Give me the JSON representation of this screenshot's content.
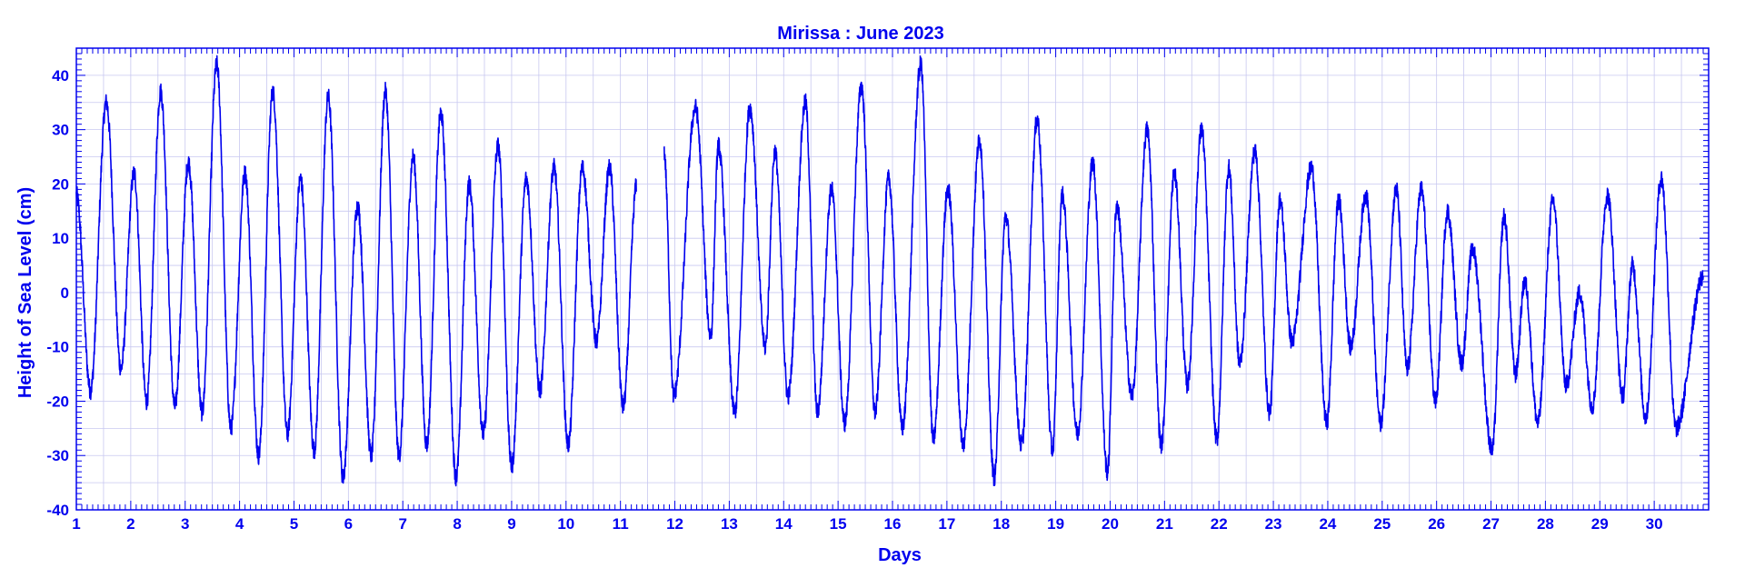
{
  "chart_data": {
    "type": "line",
    "title": "Mirissa : June 2023",
    "xlabel": "Days",
    "ylabel": "Height of Sea Level (cm)",
    "xlim": [
      1,
      31
    ],
    "ylim": [
      -40,
      45
    ],
    "x_ticks": [
      1,
      2,
      3,
      4,
      5,
      6,
      7,
      8,
      9,
      10,
      11,
      12,
      13,
      14,
      15,
      16,
      17,
      18,
      19,
      20,
      21,
      22,
      23,
      24,
      25,
      26,
      27,
      28,
      29,
      30
    ],
    "y_ticks": [
      -40,
      -30,
      -20,
      -10,
      0,
      10,
      20,
      30,
      40
    ],
    "grid": true,
    "colors": {
      "line": "#0000ee",
      "axis": "#0000ee",
      "grid": "#c8c8f0"
    },
    "gap": [
      11.3,
      11.8
    ],
    "series": [
      {
        "values": [
          [
            1.0,
            18
          ],
          [
            1.26,
            -18
          ],
          [
            1.55,
            35
          ],
          [
            1.82,
            -14
          ],
          [
            2.06,
            22
          ],
          [
            2.29,
            -20
          ],
          [
            2.55,
            37
          ],
          [
            2.81,
            -21
          ],
          [
            3.06,
            24
          ],
          [
            3.31,
            -22
          ],
          [
            3.58,
            42
          ],
          [
            3.84,
            -25
          ],
          [
            4.1,
            22
          ],
          [
            4.35,
            -30
          ],
          [
            4.61,
            37
          ],
          [
            4.88,
            -26
          ],
          [
            5.12,
            21
          ],
          [
            5.37,
            -29
          ],
          [
            5.63,
            36
          ],
          [
            5.9,
            -34
          ],
          [
            6.17,
            16
          ],
          [
            6.42,
            -30
          ],
          [
            6.68,
            37
          ],
          [
            6.93,
            -30
          ],
          [
            7.19,
            25
          ],
          [
            7.44,
            -28
          ],
          [
            7.7,
            33
          ],
          [
            7.98,
            -34
          ],
          [
            8.22,
            20
          ],
          [
            8.48,
            -26
          ],
          [
            8.75,
            27
          ],
          [
            9.0,
            -32
          ],
          [
            9.27,
            21
          ],
          [
            9.52,
            -18
          ],
          [
            9.78,
            23
          ],
          [
            10.04,
            -28
          ],
          [
            10.3,
            23
          ],
          [
            10.56,
            -9
          ],
          [
            10.8,
            23
          ],
          [
            11.05,
            -21
          ],
          [
            11.3,
            20
          ],
          [
            11.8,
            26
          ],
          [
            11.98,
            -19
          ],
          [
            12.38,
            34
          ],
          [
            12.66,
            -8
          ],
          [
            12.8,
            27
          ],
          [
            13.1,
            -22
          ],
          [
            13.38,
            34
          ],
          [
            13.66,
            -10
          ],
          [
            13.84,
            26
          ],
          [
            14.08,
            -19
          ],
          [
            14.4,
            35
          ],
          [
            14.62,
            -22
          ],
          [
            14.88,
            19
          ],
          [
            15.12,
            -24
          ],
          [
            15.43,
            38
          ],
          [
            15.68,
            -22
          ],
          [
            15.93,
            21
          ],
          [
            16.18,
            -25
          ],
          [
            16.52,
            42
          ],
          [
            16.75,
            -27
          ],
          [
            17.02,
            19
          ],
          [
            17.3,
            -28
          ],
          [
            17.6,
            28
          ],
          [
            17.87,
            -34
          ],
          [
            18.08,
            14
          ],
          [
            18.37,
            -28
          ],
          [
            18.66,
            32
          ],
          [
            18.94,
            -29
          ],
          [
            19.12,
            18
          ],
          [
            19.4,
            -26
          ],
          [
            19.68,
            24
          ],
          [
            19.95,
            -33
          ],
          [
            20.12,
            16
          ],
          [
            20.4,
            -19
          ],
          [
            20.68,
            30
          ],
          [
            20.94,
            -28
          ],
          [
            21.18,
            22
          ],
          [
            21.42,
            -17
          ],
          [
            21.68,
            30
          ],
          [
            21.96,
            -27
          ],
          [
            22.18,
            23
          ],
          [
            22.38,
            -13
          ],
          [
            22.66,
            26
          ],
          [
            22.93,
            -22
          ],
          [
            23.12,
            17
          ],
          [
            23.34,
            -9
          ],
          [
            23.7,
            23
          ],
          [
            23.98,
            -24
          ],
          [
            24.2,
            17
          ],
          [
            24.42,
            -10
          ],
          [
            24.7,
            18
          ],
          [
            24.97,
            -24
          ],
          [
            25.26,
            19
          ],
          [
            25.46,
            -14
          ],
          [
            25.72,
            19
          ],
          [
            25.98,
            -20
          ],
          [
            26.2,
            15
          ],
          [
            26.46,
            -13
          ],
          [
            26.66,
            8
          ],
          [
            27.02,
            -29
          ],
          [
            27.24,
            14
          ],
          [
            27.45,
            -15
          ],
          [
            27.62,
            2
          ],
          [
            27.86,
            -24
          ],
          [
            28.14,
            17
          ],
          [
            28.38,
            -17
          ],
          [
            28.63,
            0
          ],
          [
            28.86,
            -21
          ],
          [
            29.14,
            18
          ],
          [
            29.42,
            -19
          ],
          [
            29.6,
            5
          ],
          [
            29.84,
            -23
          ],
          [
            30.13,
            21
          ],
          [
            30.4,
            -25
          ],
          [
            30.9,
            3
          ]
        ]
      }
    ]
  }
}
